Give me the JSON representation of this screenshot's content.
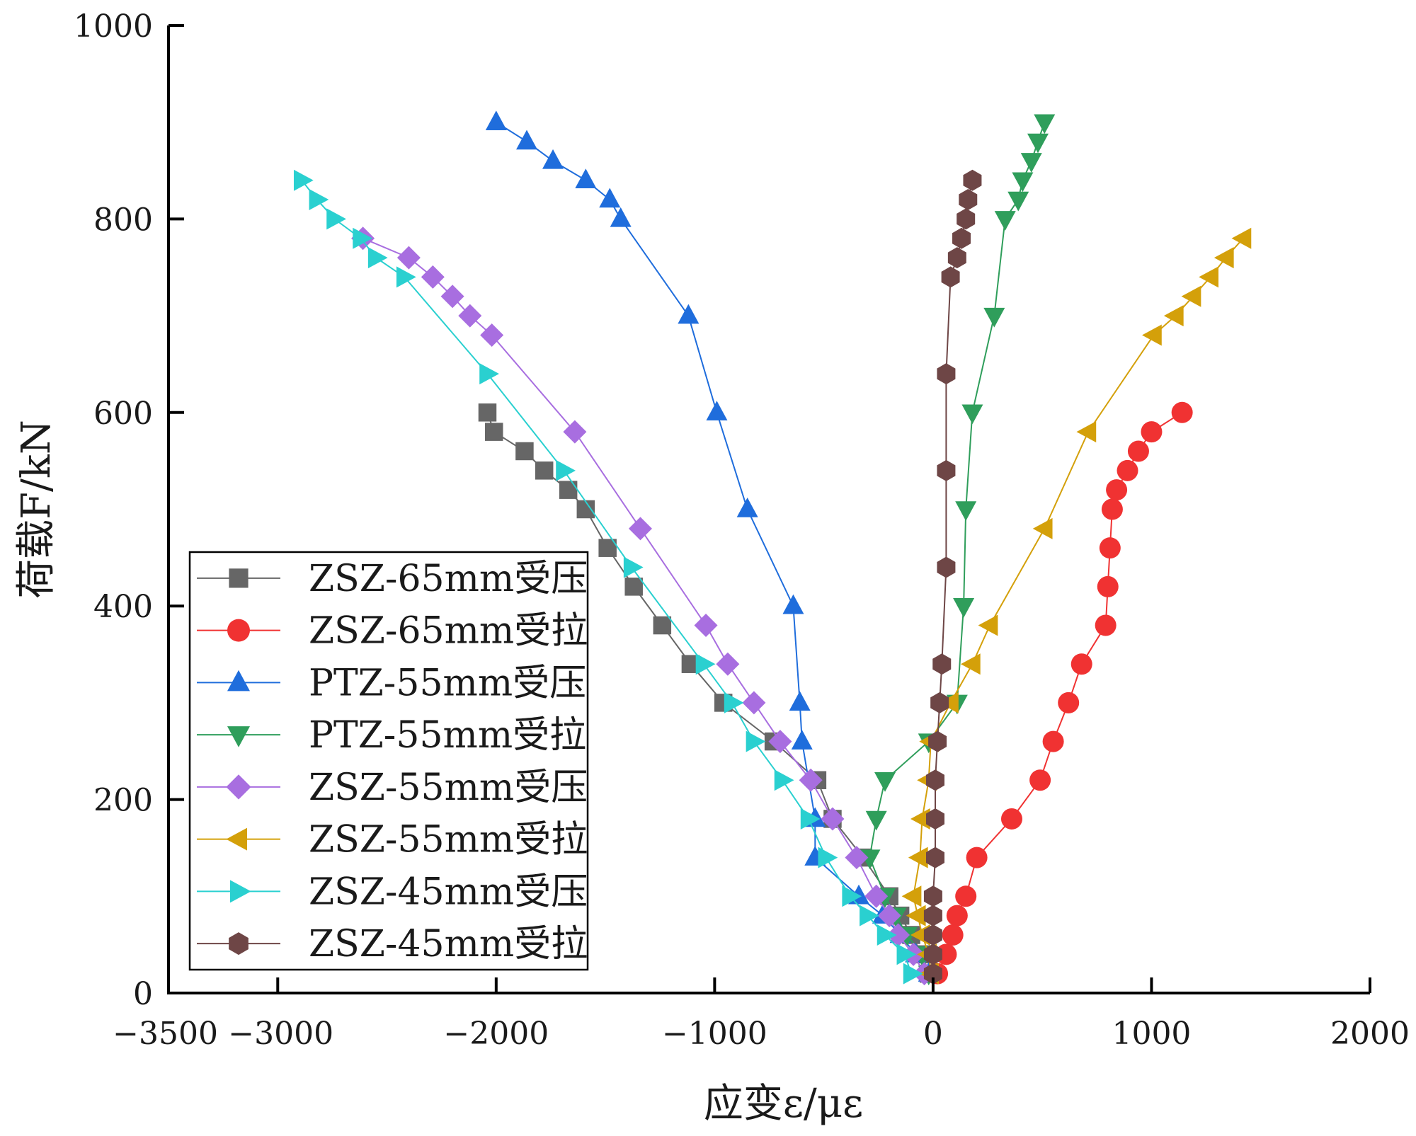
{
  "chart_data": {
    "type": "line",
    "title": "",
    "xlabel": "应变ε/με",
    "ylabel": "荷载F/kN",
    "xlim": [
      -3500,
      2000
    ],
    "ylim": [
      0,
      1000
    ],
    "x_ticks": [
      -3500,
      -3000,
      -2000,
      -1000,
      0,
      1000,
      2000
    ],
    "x_tick_labels": [
      "−3500",
      "−3000",
      "−2000",
      "−1000",
      "0",
      "1000",
      "2000"
    ],
    "y_ticks": [
      0,
      200,
      400,
      600,
      800,
      1000
    ],
    "y_tick_labels": [
      "0",
      "200",
      "400",
      "600",
      "800",
      "1000"
    ],
    "grid": false,
    "legend_position": "bottom-left",
    "series": [
      {
        "name": "ZSZ-65mm受压",
        "color": "#666666",
        "marker": "square",
        "points": [
          [
            -20,
            20
          ],
          [
            -50,
            40
          ],
          [
            -100,
            60
          ],
          [
            -150,
            80
          ],
          [
            -200,
            100
          ],
          [
            -320,
            140
          ],
          [
            -460,
            180
          ],
          [
            -530,
            220
          ],
          [
            -730,
            260
          ],
          [
            -960,
            300
          ],
          [
            -1110,
            340
          ],
          [
            -1240,
            380
          ],
          [
            -1370,
            420
          ],
          [
            -1490,
            460
          ],
          [
            -1590,
            500
          ],
          [
            -1670,
            520
          ],
          [
            -1780,
            540
          ],
          [
            -1870,
            560
          ],
          [
            -2010,
            580
          ],
          [
            -2040,
            600
          ]
        ]
      },
      {
        "name": "ZSZ-65mm受拉",
        "color": "#f03232",
        "marker": "circle",
        "points": [
          [
            20,
            20
          ],
          [
            60,
            40
          ],
          [
            90,
            60
          ],
          [
            110,
            80
          ],
          [
            150,
            100
          ],
          [
            200,
            140
          ],
          [
            360,
            180
          ],
          [
            490,
            220
          ],
          [
            550,
            260
          ],
          [
            620,
            300
          ],
          [
            680,
            340
          ],
          [
            790,
            380
          ],
          [
            800,
            420
          ],
          [
            810,
            460
          ],
          [
            820,
            500
          ],
          [
            840,
            520
          ],
          [
            890,
            540
          ],
          [
            940,
            560
          ],
          [
            1000,
            580
          ],
          [
            1140,
            600
          ]
        ]
      },
      {
        "name": "PTZ-55mm受压",
        "color": "#1f6ddc",
        "marker": "triangle-up",
        "points": [
          [
            -20,
            20
          ],
          [
            -80,
            40
          ],
          [
            -150,
            60
          ],
          [
            -230,
            80
          ],
          [
            -340,
            100
          ],
          [
            -540,
            140
          ],
          [
            -540,
            180
          ],
          [
            -600,
            260
          ],
          [
            -610,
            300
          ],
          [
            -640,
            400
          ],
          [
            -850,
            500
          ],
          [
            -990,
            600
          ],
          [
            -1120,
            700
          ],
          [
            -1430,
            800
          ],
          [
            -1480,
            820
          ],
          [
            -1590,
            840
          ],
          [
            -1740,
            860
          ],
          [
            -1860,
            880
          ],
          [
            -2000,
            900
          ]
        ]
      },
      {
        "name": "PTZ-55mm受拉",
        "color": "#2f9e5b",
        "marker": "triangle-down",
        "points": [
          [
            -20,
            20
          ],
          [
            -50,
            40
          ],
          [
            -120,
            60
          ],
          [
            -170,
            80
          ],
          [
            -220,
            100
          ],
          [
            -290,
            140
          ],
          [
            -260,
            180
          ],
          [
            -220,
            220
          ],
          [
            -20,
            260
          ],
          [
            110,
            300
          ],
          [
            140,
            400
          ],
          [
            150,
            500
          ],
          [
            180,
            600
          ],
          [
            280,
            700
          ],
          [
            330,
            800
          ],
          [
            390,
            820
          ],
          [
            410,
            840
          ],
          [
            450,
            860
          ],
          [
            480,
            880
          ],
          [
            510,
            900
          ]
        ]
      },
      {
        "name": "ZSZ-55mm受压",
        "color": "#a86ee0",
        "marker": "diamond",
        "points": [
          [
            -40,
            20
          ],
          [
            -90,
            40
          ],
          [
            -160,
            60
          ],
          [
            -200,
            80
          ],
          [
            -260,
            100
          ],
          [
            -350,
            140
          ],
          [
            -460,
            180
          ],
          [
            -560,
            220
          ],
          [
            -700,
            260
          ],
          [
            -820,
            300
          ],
          [
            -940,
            340
          ],
          [
            -1040,
            380
          ],
          [
            -1340,
            480
          ],
          [
            -1640,
            580
          ],
          [
            -2020,
            680
          ],
          [
            -2120,
            700
          ],
          [
            -2200,
            720
          ],
          [
            -2290,
            740
          ],
          [
            -2400,
            760
          ],
          [
            -2610,
            780
          ]
        ]
      },
      {
        "name": "ZSZ-55mm受拉",
        "color": "#d4a00a",
        "marker": "triangle-left",
        "points": [
          [
            -10,
            20
          ],
          [
            -20,
            40
          ],
          [
            -50,
            60
          ],
          [
            -70,
            80
          ],
          [
            -90,
            100
          ],
          [
            -60,
            140
          ],
          [
            -50,
            180
          ],
          [
            -20,
            220
          ],
          [
            -10,
            260
          ],
          [
            80,
            300
          ],
          [
            180,
            340
          ],
          [
            260,
            380
          ],
          [
            510,
            480
          ],
          [
            710,
            580
          ],
          [
            1010,
            680
          ],
          [
            1110,
            700
          ],
          [
            1190,
            720
          ],
          [
            1270,
            740
          ],
          [
            1340,
            760
          ],
          [
            1420,
            780
          ]
        ]
      },
      {
        "name": "ZSZ-45mm受压",
        "color": "#2ad0d0",
        "marker": "triangle-right",
        "points": [
          [
            -100,
            20
          ],
          [
            -130,
            40
          ],
          [
            -220,
            60
          ],
          [
            -300,
            80
          ],
          [
            -380,
            100
          ],
          [
            -490,
            140
          ],
          [
            -570,
            180
          ],
          [
            -690,
            220
          ],
          [
            -820,
            260
          ],
          [
            -920,
            300
          ],
          [
            -1050,
            340
          ],
          [
            -1380,
            440
          ],
          [
            -1690,
            540
          ],
          [
            -2040,
            640
          ],
          [
            -2420,
            740
          ],
          [
            -2550,
            760
          ],
          [
            -2620,
            780
          ],
          [
            -2740,
            800
          ],
          [
            -2820,
            820
          ],
          [
            -2890,
            840
          ]
        ]
      },
      {
        "name": "ZSZ-45mm受拉",
        "color": "#6e4646",
        "marker": "hexagon",
        "points": [
          [
            0,
            20
          ],
          [
            0,
            40
          ],
          [
            0,
            60
          ],
          [
            0,
            80
          ],
          [
            0,
            100
          ],
          [
            10,
            140
          ],
          [
            10,
            180
          ],
          [
            10,
            220
          ],
          [
            20,
            260
          ],
          [
            30,
            300
          ],
          [
            40,
            340
          ],
          [
            60,
            440
          ],
          [
            60,
            540
          ],
          [
            60,
            640
          ],
          [
            80,
            740
          ],
          [
            110,
            760
          ],
          [
            130,
            780
          ],
          [
            150,
            800
          ],
          [
            160,
            820
          ],
          [
            180,
            840
          ]
        ]
      }
    ]
  }
}
